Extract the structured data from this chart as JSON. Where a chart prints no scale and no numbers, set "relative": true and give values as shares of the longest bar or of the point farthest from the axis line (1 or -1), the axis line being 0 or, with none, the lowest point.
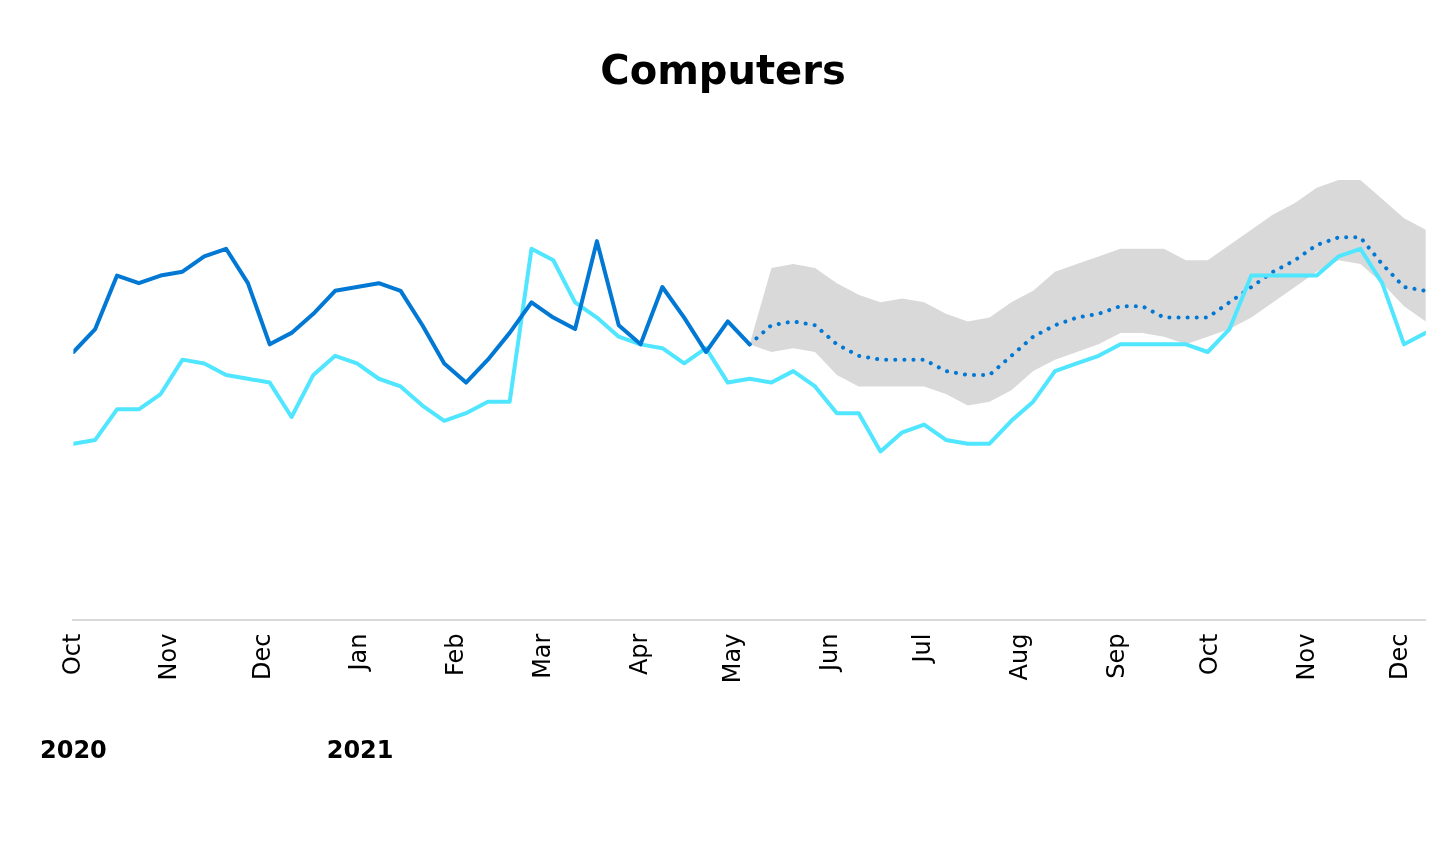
{
  "chart_data": {
    "type": "line",
    "title": "Computers",
    "relative": true,
    "grid": false,
    "legend": false,
    "marker": "none",
    "x": [
      "2020-10-01",
      "2020-10-08",
      "2020-10-15",
      "2020-10-22",
      "2020-10-29",
      "2020-11-05",
      "2020-11-12",
      "2020-11-19",
      "2020-11-26",
      "2020-12-03",
      "2020-12-10",
      "2020-12-17",
      "2020-12-24",
      "2020-12-31",
      "2021-01-07",
      "2021-01-14",
      "2021-01-21",
      "2021-01-28",
      "2021-02-04",
      "2021-02-11",
      "2021-02-18",
      "2021-02-25",
      "2021-03-04",
      "2021-03-11",
      "2021-03-18",
      "2021-03-25",
      "2021-04-01",
      "2021-04-08",
      "2021-04-15",
      "2021-04-22",
      "2021-04-29",
      "2021-05-06",
      "2021-05-13",
      "2021-05-20",
      "2021-05-27",
      "2021-06-03",
      "2021-06-10",
      "2021-06-17",
      "2021-06-24",
      "2021-07-01",
      "2021-07-08",
      "2021-07-15",
      "2021-07-22",
      "2021-07-29",
      "2021-08-05",
      "2021-08-12",
      "2021-08-19",
      "2021-08-26",
      "2021-09-02",
      "2021-09-09",
      "2021-09-16",
      "2021-09-23",
      "2021-09-30",
      "2021-10-07",
      "2021-10-14",
      "2021-10-21",
      "2021-10-28",
      "2021-11-04",
      "2021-11-11",
      "2021-11-18",
      "2021-11-25",
      "2021-12-02",
      "2021-12-09"
    ],
    "xlim": [
      "2020-10-01",
      "2021-12-09"
    ],
    "xticks": [
      {
        "value": "2020-10-01",
        "label": "Oct"
      },
      {
        "value": "2020-11-01",
        "label": "Nov"
      },
      {
        "value": "2020-12-01",
        "label": "Dec"
      },
      {
        "value": "2021-01-01",
        "label": "Jan"
      },
      {
        "value": "2021-02-01",
        "label": "Feb"
      },
      {
        "value": "2021-03-01",
        "label": "Mar"
      },
      {
        "value": "2021-04-01",
        "label": "Apr"
      },
      {
        "value": "2021-05-01",
        "label": "May"
      },
      {
        "value": "2021-06-01",
        "label": "Jun"
      },
      {
        "value": "2021-07-01",
        "label": "Jul"
      },
      {
        "value": "2021-08-01",
        "label": "Aug"
      },
      {
        "value": "2021-09-01",
        "label": "Sep"
      },
      {
        "value": "2021-10-01",
        "label": "Oct"
      },
      {
        "value": "2021-11-01",
        "label": "Nov"
      },
      {
        "value": "2021-12-01",
        "label": "Dec"
      }
    ],
    "x2lim": [
      "2020-10-01",
      "2021-12-09"
    ],
    "x2ticks": [
      {
        "value": "2020-10-01",
        "label": "2020"
      },
      {
        "value": "2021-01-01",
        "label": "2021"
      }
    ],
    "series": [
      {
        "color": "#0078d4",
        "values": [
          0.7,
          0.76,
          0.9,
          0.88,
          0.9,
          0.91,
          0.95,
          0.97,
          0.88,
          0.72,
          0.75,
          0.8,
          0.86,
          0.87,
          0.88,
          0.86,
          0.77,
          0.67,
          0.62,
          0.68,
          0.75,
          0.83,
          0.79,
          0.76,
          0.99,
          0.77,
          0.72,
          0.87,
          0.79,
          0.7,
          0.78,
          0.72,
          null,
          null,
          null,
          null,
          null,
          null,
          null,
          null,
          null,
          null,
          null,
          null,
          null,
          null,
          null,
          null,
          null,
          null,
          null,
          null,
          null,
          null,
          null,
          null,
          null,
          null,
          null,
          null,
          null,
          null,
          null
        ]
      },
      {
        "color": "#50e6ff",
        "values": [
          0.46,
          0.47,
          0.55,
          0.55,
          0.59,
          0.68,
          0.67,
          0.64,
          0.63,
          0.62,
          0.53,
          0.64,
          0.69,
          0.67,
          0.63,
          0.61,
          0.56,
          0.52,
          0.54,
          0.57,
          0.57,
          0.97,
          0.94,
          0.83,
          0.79,
          0.74,
          0.72,
          0.71,
          0.67,
          0.71,
          0.62,
          0.63,
          0.62,
          0.65,
          0.61,
          0.54,
          0.54,
          0.44,
          0.49,
          0.51,
          0.47,
          0.46,
          0.46,
          0.52,
          0.57,
          0.65,
          0.67,
          0.69,
          0.72,
          0.72,
          0.72,
          0.72,
          0.7,
          0.76,
          0.9,
          0.9,
          0.9,
          0.9,
          0.95,
          0.97,
          0.88,
          0.72,
          0.75
        ]
      },
      {
        "color": "#0078d4",
        "line_style": "dotted",
        "values": [
          null,
          null,
          null,
          null,
          null,
          null,
          null,
          null,
          null,
          null,
          null,
          null,
          null,
          null,
          null,
          null,
          null,
          null,
          null,
          null,
          null,
          null,
          null,
          null,
          null,
          null,
          null,
          null,
          null,
          null,
          null,
          0.72,
          0.77,
          0.78,
          0.77,
          0.72,
          0.69,
          0.68,
          0.68,
          0.68,
          0.65,
          0.64,
          0.64,
          0.69,
          0.74,
          0.77,
          0.79,
          0.8,
          0.82,
          0.82,
          0.79,
          0.79,
          0.79,
          0.83,
          0.87,
          0.91,
          0.94,
          0.98,
          1,
          1,
          0.93,
          0.87,
          0.86
        ],
        "lower": [
          null,
          null,
          null,
          null,
          null,
          null,
          null,
          null,
          null,
          null,
          null,
          null,
          null,
          null,
          null,
          null,
          null,
          null,
          null,
          null,
          null,
          null,
          null,
          null,
          null,
          null,
          null,
          null,
          null,
          null,
          null,
          0.72,
          0.7,
          0.71,
          0.7,
          0.64,
          0.61,
          0.61,
          0.61,
          0.61,
          0.59,
          0.56,
          0.57,
          0.6,
          0.65,
          0.68,
          0.7,
          0.72,
          0.75,
          0.75,
          0.74,
          0.72,
          0.74,
          0.76,
          0.79,
          0.83,
          0.87,
          0.91,
          0.94,
          0.93,
          0.88,
          0.82,
          0.78
        ],
        "upper": [
          null,
          null,
          null,
          null,
          null,
          null,
          null,
          null,
          null,
          null,
          null,
          null,
          null,
          null,
          null,
          null,
          null,
          null,
          null,
          null,
          null,
          null,
          null,
          null,
          null,
          null,
          null,
          null,
          null,
          null,
          null,
          0.72,
          0.92,
          0.93,
          0.92,
          0.88,
          0.85,
          0.83,
          0.84,
          0.83,
          0.8,
          0.78,
          0.79,
          0.83,
          0.86,
          0.91,
          0.93,
          0.95,
          0.97,
          0.97,
          0.97,
          0.94,
          0.94,
          0.98,
          1.02,
          1.06,
          1.09,
          1.13,
          1.15,
          1.15,
          1.1,
          1.05,
          1.02
        ]
      }
    ]
  }
}
